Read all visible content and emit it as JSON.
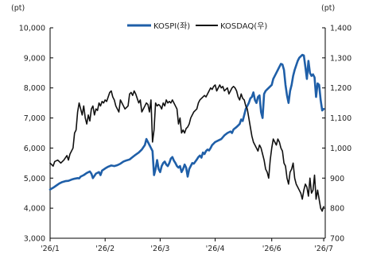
{
  "chart_data": {
    "type": "line",
    "legend_placement": "top-center",
    "grid": false,
    "x_ticks": [
      "'26/1",
      "'26/2",
      "'26/3",
      "'26/4",
      "'26/6",
      "'26/7"
    ],
    "y_left": {
      "unit": "(pt)",
      "range": [
        3000,
        10000
      ],
      "ticks": [
        "3,000",
        "4,000",
        "5,000",
        "6,000",
        "7,000",
        "8,000",
        "9,000",
        "10,000"
      ]
    },
    "y_right": {
      "unit": "(pt)",
      "range": [
        700,
        1400
      ],
      "ticks": [
        "700",
        "800",
        "900",
        "1,000",
        "1,100",
        "1,200",
        "1,300",
        "1,400"
      ]
    },
    "series": [
      {
        "name": "KOSPI(좌)",
        "axis": "left",
        "color": "#1f5fa8",
        "points": [
          [
            0,
            4620
          ],
          [
            2,
            4680
          ],
          [
            4,
            4750
          ],
          [
            6,
            4820
          ],
          [
            8,
            4870
          ],
          [
            10,
            4900
          ],
          [
            12,
            4910
          ],
          [
            14,
            4950
          ],
          [
            16,
            4980
          ],
          [
            18,
            5000
          ],
          [
            19,
            4990
          ],
          [
            20,
            5050
          ],
          [
            22,
            5100
          ],
          [
            24,
            5170
          ],
          [
            26,
            5220
          ],
          [
            27,
            5150
          ],
          [
            28,
            5000
          ],
          [
            30,
            5150
          ],
          [
            32,
            5200
          ],
          [
            33,
            5100
          ],
          [
            34,
            5250
          ],
          [
            36,
            5320
          ],
          [
            38,
            5380
          ],
          [
            40,
            5420
          ],
          [
            42,
            5400
          ],
          [
            44,
            5430
          ],
          [
            46,
            5480
          ],
          [
            48,
            5550
          ],
          [
            50,
            5590
          ],
          [
            52,
            5620
          ],
          [
            54,
            5700
          ],
          [
            56,
            5780
          ],
          [
            58,
            5850
          ],
          [
            60,
            5950
          ],
          [
            62,
            6100
          ],
          [
            63,
            6300
          ],
          [
            64,
            6200
          ],
          [
            65,
            6100
          ],
          [
            66,
            6000
          ],
          [
            67,
            5900
          ],
          [
            68,
            5100
          ],
          [
            69,
            5300
          ],
          [
            70,
            5600
          ],
          [
            71,
            5300
          ],
          [
            72,
            5200
          ],
          [
            73,
            5400
          ],
          [
            74,
            5500
          ],
          [
            75,
            5550
          ],
          [
            76,
            5450
          ],
          [
            77,
            5400
          ],
          [
            78,
            5500
          ],
          [
            79,
            5650
          ],
          [
            80,
            5700
          ],
          [
            81,
            5580
          ],
          [
            82,
            5500
          ],
          [
            83,
            5400
          ],
          [
            84,
            5350
          ],
          [
            85,
            5400
          ],
          [
            86,
            5200
          ],
          [
            87,
            5300
          ],
          [
            88,
            5450
          ],
          [
            89,
            5350
          ],
          [
            90,
            5050
          ],
          [
            91,
            5300
          ],
          [
            92,
            5400
          ],
          [
            93,
            5500
          ],
          [
            94,
            5480
          ],
          [
            95,
            5550
          ],
          [
            96,
            5620
          ],
          [
            97,
            5700
          ],
          [
            98,
            5750
          ],
          [
            99,
            5680
          ],
          [
            100,
            5850
          ],
          [
            101,
            5800
          ],
          [
            102,
            5900
          ],
          [
            103,
            5950
          ],
          [
            104,
            5920
          ],
          [
            105,
            6000
          ],
          [
            106,
            6100
          ],
          [
            107,
            6150
          ],
          [
            108,
            6200
          ],
          [
            110,
            6250
          ],
          [
            112,
            6300
          ],
          [
            114,
            6420
          ],
          [
            116,
            6500
          ],
          [
            118,
            6550
          ],
          [
            119,
            6500
          ],
          [
            120,
            6620
          ],
          [
            122,
            6700
          ],
          [
            124,
            6800
          ],
          [
            125,
            6950
          ],
          [
            126,
            6900
          ],
          [
            127,
            7100
          ],
          [
            128,
            7300
          ],
          [
            129,
            7400
          ],
          [
            130,
            7500
          ],
          [
            131,
            7650
          ],
          [
            132,
            7700
          ],
          [
            133,
            7850
          ],
          [
            134,
            7600
          ],
          [
            135,
            7500
          ],
          [
            136,
            7700
          ],
          [
            137,
            7750
          ],
          [
            138,
            7200
          ],
          [
            139,
            7000
          ],
          [
            140,
            7800
          ],
          [
            141,
            7900
          ],
          [
            142,
            7950
          ],
          [
            143,
            8000
          ],
          [
            144,
            8050
          ],
          [
            145,
            8100
          ],
          [
            146,
            8300
          ],
          [
            147,
            8400
          ],
          [
            148,
            8500
          ],
          [
            149,
            8600
          ],
          [
            150,
            8700
          ],
          [
            151,
            8800
          ],
          [
            152,
            8780
          ],
          [
            153,
            8600
          ],
          [
            154,
            8100
          ],
          [
            155,
            7750
          ],
          [
            156,
            7500
          ],
          [
            157,
            7900
          ],
          [
            158,
            8100
          ],
          [
            159,
            8400
          ],
          [
            160,
            8600
          ],
          [
            161,
            8750
          ],
          [
            162,
            8900
          ],
          [
            163,
            9000
          ],
          [
            164,
            9050
          ],
          [
            165,
            9100
          ],
          [
            166,
            9080
          ],
          [
            167,
            8700
          ],
          [
            168,
            8300
          ],
          [
            169,
            8900
          ],
          [
            170,
            8500
          ],
          [
            171,
            8400
          ],
          [
            172,
            8450
          ],
          [
            173,
            8350
          ],
          [
            174,
            7700
          ],
          [
            175,
            8150
          ],
          [
            176,
            8100
          ],
          [
            177,
            7600
          ],
          [
            178,
            7250
          ],
          [
            179,
            7300
          ]
        ]
      },
      {
        "name": "KOSDAQ(우)",
        "axis": "right",
        "color": "#111111",
        "points": [
          [
            0,
            950
          ],
          [
            2,
            940
          ],
          [
            3,
            955
          ],
          [
            5,
            960
          ],
          [
            7,
            950
          ],
          [
            9,
            960
          ],
          [
            11,
            975
          ],
          [
            12,
            960
          ],
          [
            13,
            980
          ],
          [
            15,
            1000
          ],
          [
            16,
            1050
          ],
          [
            17,
            1060
          ],
          [
            18,
            1120
          ],
          [
            19,
            1150
          ],
          [
            20,
            1130
          ],
          [
            21,
            1110
          ],
          [
            22,
            1140
          ],
          [
            23,
            1100
          ],
          [
            24,
            1080
          ],
          [
            25,
            1110
          ],
          [
            26,
            1090
          ],
          [
            27,
            1130
          ],
          [
            28,
            1140
          ],
          [
            29,
            1110
          ],
          [
            30,
            1130
          ],
          [
            31,
            1125
          ],
          [
            32,
            1150
          ],
          [
            33,
            1140
          ],
          [
            34,
            1155
          ],
          [
            35,
            1150
          ],
          [
            36,
            1160
          ],
          [
            37,
            1155
          ],
          [
            38,
            1170
          ],
          [
            39,
            1185
          ],
          [
            40,
            1190
          ],
          [
            41,
            1170
          ],
          [
            42,
            1160
          ],
          [
            43,
            1140
          ],
          [
            44,
            1130
          ],
          [
            45,
            1120
          ],
          [
            46,
            1160
          ],
          [
            47,
            1150
          ],
          [
            48,
            1140
          ],
          [
            49,
            1130
          ],
          [
            50,
            1135
          ],
          [
            51,
            1140
          ],
          [
            52,
            1180
          ],
          [
            53,
            1185
          ],
          [
            54,
            1175
          ],
          [
            55,
            1190
          ],
          [
            56,
            1180
          ],
          [
            57,
            1165
          ],
          [
            58,
            1150
          ],
          [
            59,
            1160
          ],
          [
            60,
            1120
          ],
          [
            61,
            1130
          ],
          [
            62,
            1140
          ],
          [
            63,
            1150
          ],
          [
            64,
            1145
          ],
          [
            65,
            1120
          ],
          [
            66,
            1160
          ],
          [
            67,
            1020
          ],
          [
            68,
            1060
          ],
          [
            69,
            1150
          ],
          [
            70,
            1140
          ],
          [
            71,
            1145
          ],
          [
            72,
            1140
          ],
          [
            73,
            1130
          ],
          [
            74,
            1150
          ],
          [
            75,
            1140
          ],
          [
            76,
            1160
          ],
          [
            77,
            1150
          ],
          [
            78,
            1155
          ],
          [
            79,
            1150
          ],
          [
            80,
            1160
          ],
          [
            81,
            1150
          ],
          [
            82,
            1140
          ],
          [
            83,
            1130
          ],
          [
            84,
            1080
          ],
          [
            85,
            1100
          ],
          [
            86,
            1050
          ],
          [
            87,
            1060
          ],
          [
            88,
            1050
          ],
          [
            89,
            1065
          ],
          [
            90,
            1070
          ],
          [
            91,
            1080
          ],
          [
            92,
            1100
          ],
          [
            93,
            1110
          ],
          [
            94,
            1120
          ],
          [
            95,
            1125
          ],
          [
            96,
            1130
          ],
          [
            97,
            1150
          ],
          [
            98,
            1160
          ],
          [
            99,
            1165
          ],
          [
            100,
            1170
          ],
          [
            101,
            1175
          ],
          [
            102,
            1170
          ],
          [
            103,
            1180
          ],
          [
            104,
            1190
          ],
          [
            105,
            1200
          ],
          [
            106,
            1195
          ],
          [
            107,
            1205
          ],
          [
            108,
            1210
          ],
          [
            109,
            1190
          ],
          [
            110,
            1200
          ],
          [
            111,
            1210
          ],
          [
            112,
            1200
          ],
          [
            113,
            1205
          ],
          [
            114,
            1190
          ],
          [
            115,
            1195
          ],
          [
            116,
            1200
          ],
          [
            117,
            1180
          ],
          [
            118,
            1190
          ],
          [
            119,
            1200
          ],
          [
            120,
            1205
          ],
          [
            121,
            1200
          ],
          [
            122,
            1190
          ],
          [
            123,
            1170
          ],
          [
            124,
            1160
          ],
          [
            125,
            1180
          ],
          [
            126,
            1165
          ],
          [
            127,
            1160
          ],
          [
            128,
            1140
          ],
          [
            129,
            1130
          ],
          [
            130,
            1100
          ],
          [
            131,
            1070
          ],
          [
            132,
            1040
          ],
          [
            133,
            1020
          ],
          [
            134,
            1010
          ],
          [
            135,
            1000
          ],
          [
            136,
            990
          ],
          [
            137,
            1010
          ],
          [
            138,
            1000
          ],
          [
            139,
            980
          ],
          [
            140,
            960
          ],
          [
            141,
            930
          ],
          [
            142,
            920
          ],
          [
            143,
            900
          ],
          [
            144,
            960
          ],
          [
            145,
            1000
          ],
          [
            146,
            1030
          ],
          [
            147,
            1020
          ],
          [
            148,
            1010
          ],
          [
            149,
            1030
          ],
          [
            150,
            1020
          ],
          [
            151,
            1000
          ],
          [
            152,
            990
          ],
          [
            153,
            950
          ],
          [
            154,
            940
          ],
          [
            155,
            900
          ],
          [
            156,
            880
          ],
          [
            157,
            920
          ],
          [
            158,
            930
          ],
          [
            159,
            950
          ],
          [
            160,
            900
          ],
          [
            161,
            880
          ],
          [
            162,
            870
          ],
          [
            163,
            860
          ],
          [
            164,
            850
          ],
          [
            165,
            830
          ],
          [
            166,
            860
          ],
          [
            167,
            880
          ],
          [
            168,
            870
          ],
          [
            169,
            840
          ],
          [
            170,
            900
          ],
          [
            171,
            850
          ],
          [
            172,
            860
          ],
          [
            173,
            910
          ],
          [
            174,
            830
          ],
          [
            175,
            860
          ],
          [
            176,
            830
          ],
          [
            177,
            800
          ],
          [
            178,
            790
          ],
          [
            179,
            805
          ]
        ]
      }
    ],
    "x_domain": [
      0,
      180
    ],
    "x_tick_positions": [
      0,
      36,
      72,
      108,
      145,
      179
    ]
  }
}
